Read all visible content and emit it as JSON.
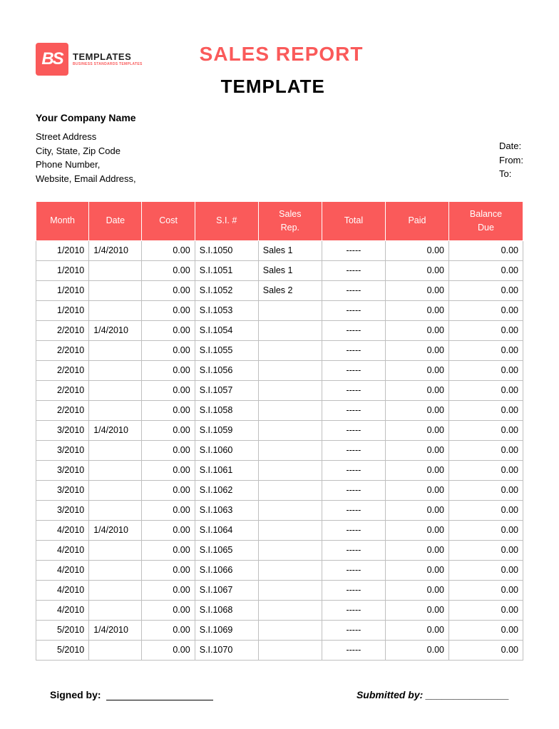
{
  "logo": {
    "initials": "BS",
    "text": "TEMPLATES",
    "sub": "BUSINESS STANDARDS TEMPLATES"
  },
  "title": "SALES REPORT",
  "subtitle": "TEMPLATE",
  "company": {
    "name": "Your Company Name",
    "street": "Street Address",
    "citystate": "City, State, Zip Code",
    "phone": "Phone Number,",
    "web": "Website, Email Address,"
  },
  "meta": {
    "date": "Date:",
    "from": "From:",
    "to": "To:"
  },
  "columns": [
    "Month",
    "Date",
    "Cost",
    "S.I. #",
    "Sales Rep.",
    "Total",
    "Paid",
    "Balance Due"
  ],
  "rows": [
    [
      "1/2010",
      "1/4/2010",
      "0.00",
      "S.I.1050",
      "Sales 1",
      "-----",
      "0.00",
      "0.00"
    ],
    [
      "1/2010",
      "",
      "0.00",
      "S.I.1051",
      "Sales 1",
      "-----",
      "0.00",
      "0.00"
    ],
    [
      "1/2010",
      "",
      "0.00",
      "S.I.1052",
      "Sales 2",
      "-----",
      "0.00",
      "0.00"
    ],
    [
      "1/2010",
      "",
      "0.00",
      "S.I.1053",
      "",
      "-----",
      "0.00",
      "0.00"
    ],
    [
      "2/2010",
      "1/4/2010",
      "0.00",
      "S.I.1054",
      "",
      "-----",
      "0.00",
      "0.00"
    ],
    [
      "2/2010",
      "",
      "0.00",
      "S.I.1055",
      "",
      "-----",
      "0.00",
      "0.00"
    ],
    [
      "2/2010",
      "",
      "0.00",
      "S.I.1056",
      "",
      "-----",
      "0.00",
      "0.00"
    ],
    [
      "2/2010",
      "",
      "0.00",
      "S.I.1057",
      "",
      "-----",
      "0.00",
      "0.00"
    ],
    [
      "2/2010",
      "",
      "0.00",
      "S.I.1058",
      "",
      "-----",
      "0.00",
      "0.00"
    ],
    [
      "3/2010",
      "1/4/2010",
      "0.00",
      "S.I.1059",
      "",
      "-----",
      "0.00",
      "0.00"
    ],
    [
      "3/2010",
      "",
      "0.00",
      "S.I.1060",
      "",
      "-----",
      "0.00",
      "0.00"
    ],
    [
      "3/2010",
      "",
      "0.00",
      "S.I.1061",
      "",
      "-----",
      "0.00",
      "0.00"
    ],
    [
      "3/2010",
      "",
      "0.00",
      "S.I.1062",
      "",
      "-----",
      "0.00",
      "0.00"
    ],
    [
      "3/2010",
      "",
      "0.00",
      "S.I.1063",
      "",
      "-----",
      "0.00",
      "0.00"
    ],
    [
      "4/2010",
      "1/4/2010",
      "0.00",
      "S.I.1064",
      "",
      "-----",
      "0.00",
      "0.00"
    ],
    [
      "4/2010",
      "",
      "0.00",
      "S.I.1065",
      "",
      "-----",
      "0.00",
      "0.00"
    ],
    [
      "4/2010",
      "",
      "0.00",
      "S.I.1066",
      "",
      "-----",
      "0.00",
      "0.00"
    ],
    [
      "4/2010",
      "",
      "0.00",
      "S.I.1067",
      "",
      "-----",
      "0.00",
      "0.00"
    ],
    [
      "4/2010",
      "",
      "0.00",
      "S.I.1068",
      "",
      "-----",
      "0.00",
      "0.00"
    ],
    [
      "5/2010",
      "1/4/2010",
      "0.00",
      "S.I.1069",
      "",
      "-----",
      "0.00",
      "0.00"
    ],
    [
      "5/2010",
      "",
      "0.00",
      "S.I.1070",
      "",
      "-----",
      "0.00",
      "0.00"
    ]
  ],
  "footer": {
    "signed": "Signed by:",
    "submitted": "Submitted by:",
    "dash": " _______________"
  },
  "style": {
    "accent": "#fa5a5a",
    "header_text": "#ffffff",
    "border": "#bfbfbf",
    "col_align": [
      "r",
      "l",
      "r",
      "l",
      "l",
      "c",
      "r",
      "r"
    ]
  }
}
